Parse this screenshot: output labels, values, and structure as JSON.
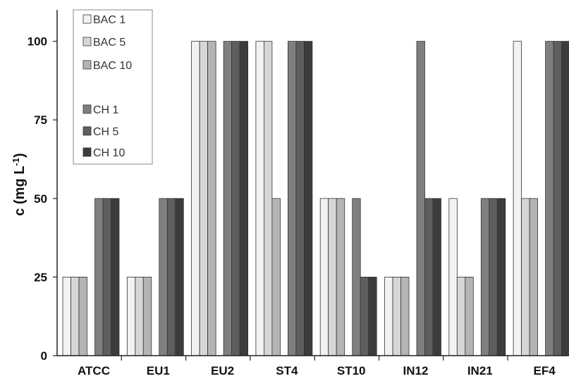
{
  "chart_data": {
    "type": "bar",
    "categories": [
      "ATCC",
      "EU1",
      "EU2",
      "ST4",
      "ST10",
      "IN12",
      "IN21",
      "EF4"
    ],
    "series": [
      {
        "name": "BAC 1",
        "color": "#f2f2f2",
        "values": [
          25,
          25,
          100,
          100,
          50,
          25,
          50,
          100
        ]
      },
      {
        "name": "BAC 5",
        "color": "#d6d6d6",
        "values": [
          25,
          25,
          100,
          100,
          50,
          25,
          25,
          50
        ]
      },
      {
        "name": "BAC 10",
        "color": "#b4b4b4",
        "values": [
          25,
          25,
          100,
          50,
          50,
          25,
          25,
          50
        ]
      },
      {
        "name": "CH 1",
        "color": "#7f7f7f",
        "values": [
          50,
          50,
          100,
          100,
          50,
          100,
          50,
          100
        ]
      },
      {
        "name": "CH 5",
        "color": "#5e5e5e",
        "values": [
          50,
          50,
          100,
          100,
          25,
          50,
          50,
          100
        ]
      },
      {
        "name": "CH 10",
        "color": "#3c3c3c",
        "values": [
          50,
          50,
          100,
          100,
          25,
          50,
          50,
          100
        ]
      }
    ],
    "ylabel_main": "c (mg L",
    "ylabel_sup": "-1",
    "ylabel_close": ")",
    "yticks": [
      "0",
      "25",
      "50",
      "75",
      "100"
    ],
    "ylim": [
      0,
      110
    ],
    "legend_position": "top-left",
    "grid": false
  }
}
